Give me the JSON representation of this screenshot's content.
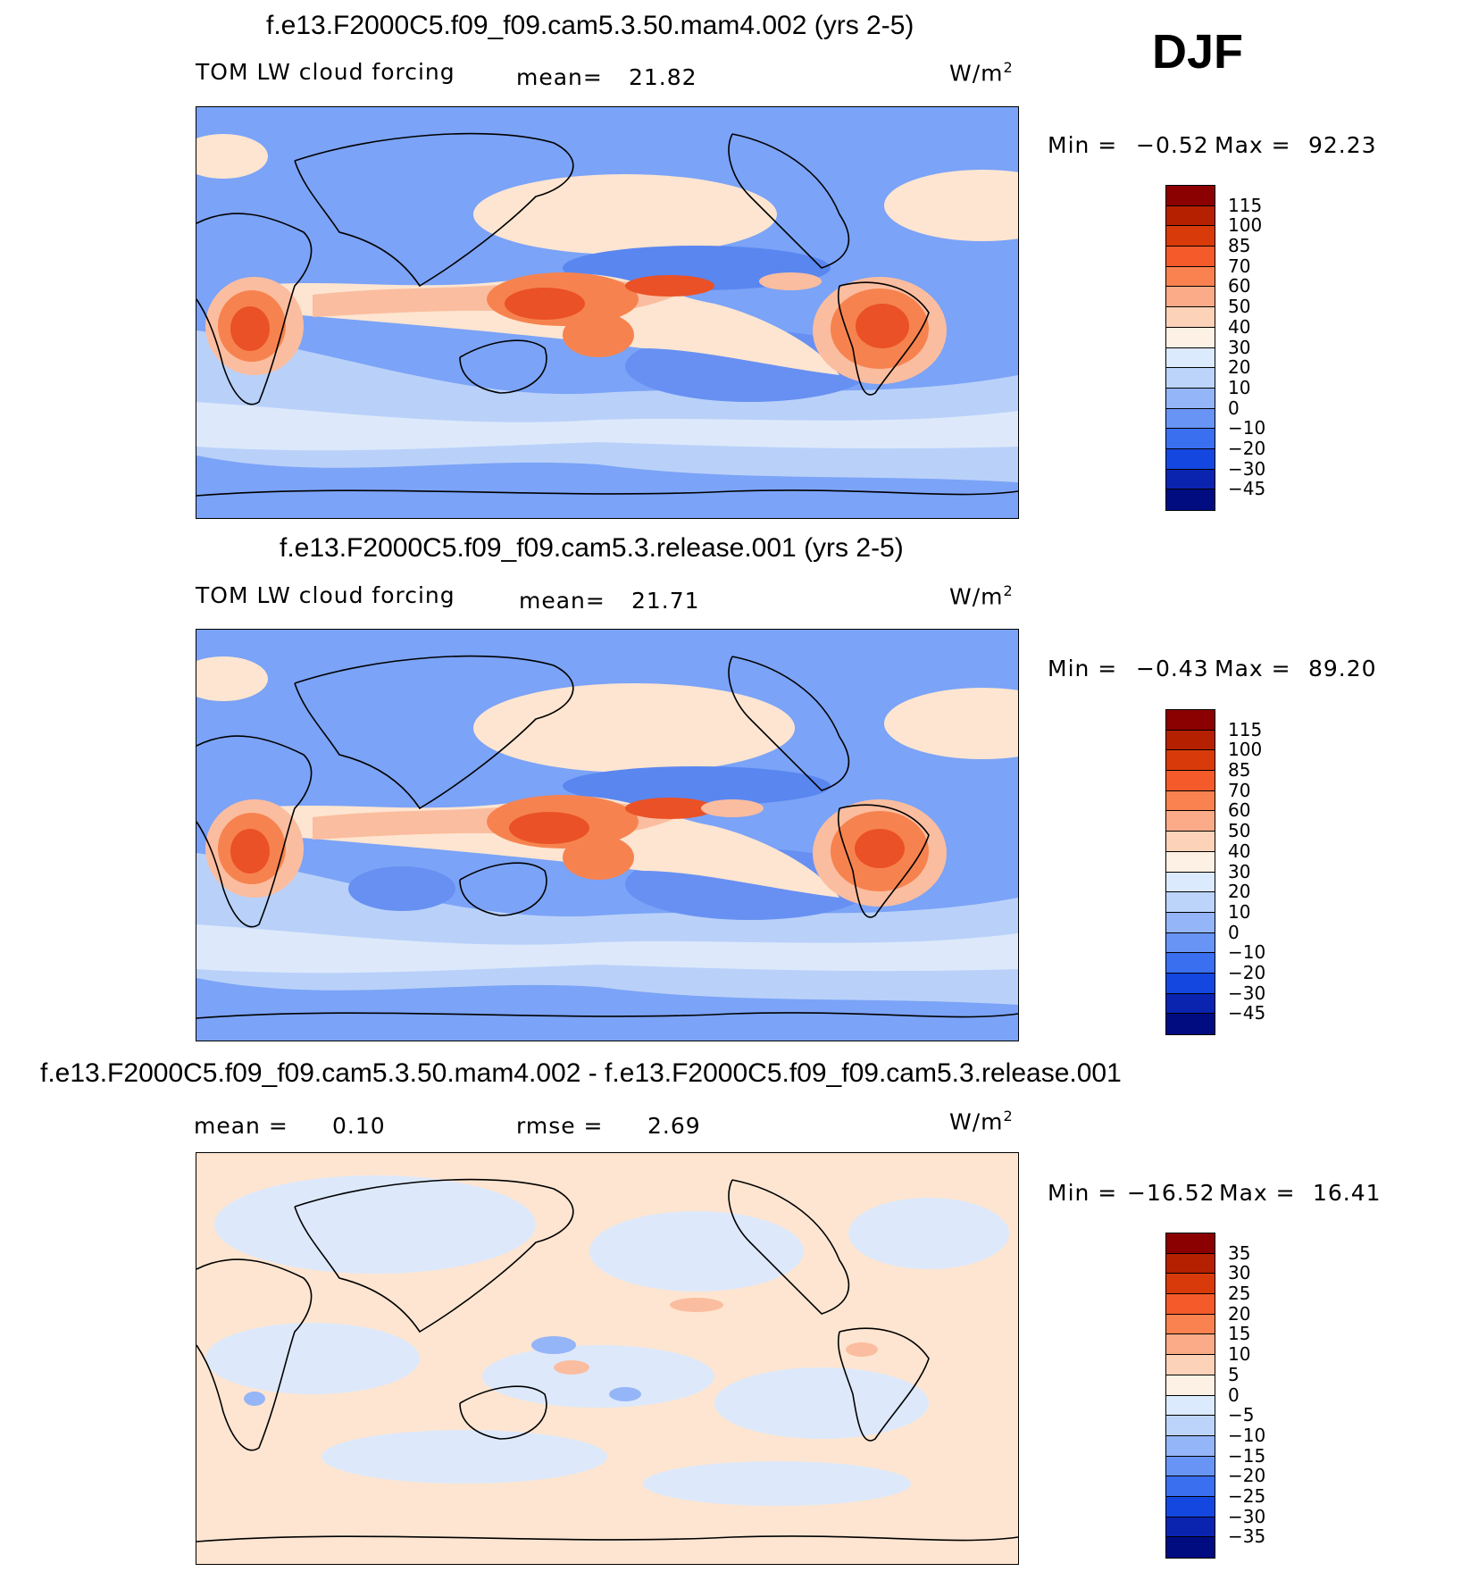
{
  "season": "DJF",
  "unit": "W/m",
  "unit_sup": "2",
  "panels": [
    {
      "title": "f.e13.F2000C5.f09_f09.cam5.3.50.mam4.002 (yrs 2-5)",
      "field": "TOM LW cloud forcing",
      "stat1_label": "mean=",
      "stat1_value": "21.82",
      "min_label": "Min  =",
      "min_value": "−0.52",
      "max_label": "Max  =",
      "max_value": "92.23"
    },
    {
      "title": "f.e13.F2000C5.f09_f09.cam5.3.release.001 (yrs 2-5)",
      "field": "TOM LW cloud forcing",
      "stat1_label": "mean=",
      "stat1_value": "21.71",
      "min_label": "Min  =",
      "min_value": "−0.43",
      "max_label": "Max  =",
      "max_value": "89.20"
    },
    {
      "title": "f.e13.F2000C5.f09_f09.cam5.3.50.mam4.002 - f.e13.F2000C5.f09_f09.cam5.3.release.001",
      "stat1_label": "mean =",
      "stat1_value": "0.10",
      "stat2_label": "rmse =",
      "stat2_value": "2.69",
      "min_label": "Min  =",
      "min_value": "−16.52",
      "max_label": "Max  =",
      "max_value": "16.41"
    }
  ],
  "colorbar_field": {
    "labels": [
      "115",
      "100",
      "85",
      "70",
      "60",
      "50",
      "40",
      "30",
      "20",
      "10",
      "0",
      "−10",
      "−20",
      "−30",
      "−45"
    ],
    "colors": [
      "#8b0000",
      "#b52000",
      "#d93a0a",
      "#f45a2a",
      "#f98250",
      "#fbab88",
      "#fcd3b8",
      "#fdf0e4",
      "#dbeafc",
      "#bcd4fa",
      "#94b5f8",
      "#6895f5",
      "#3a6ff0",
      "#1446e0",
      "#0a24b0",
      "#000c80"
    ]
  },
  "colorbar_diff": {
    "labels": [
      "35",
      "30",
      "25",
      "20",
      "15",
      "10",
      "5",
      "0",
      "−5",
      "−10",
      "−15",
      "−20",
      "−25",
      "−30",
      "−35"
    ],
    "colors": [
      "#8b0000",
      "#b52000",
      "#d93a0a",
      "#f45a2a",
      "#f98250",
      "#fbab88",
      "#fcd3b8",
      "#fdf0e4",
      "#dbeafc",
      "#bcd4fa",
      "#94b5f8",
      "#6895f5",
      "#3a6ff0",
      "#1446e0",
      "#0a24b0",
      "#000c80"
    ]
  },
  "map_colors": {
    "ocean_low": "#7ba3f7",
    "ocean_mid": "#b9d1f9",
    "pale": "#dde9fb",
    "peach": "#fde5d1",
    "salmon": "#fbbd9f",
    "orange": "#f6834f",
    "red": "#ea5126",
    "deep_blue": "#5a86f0"
  }
}
